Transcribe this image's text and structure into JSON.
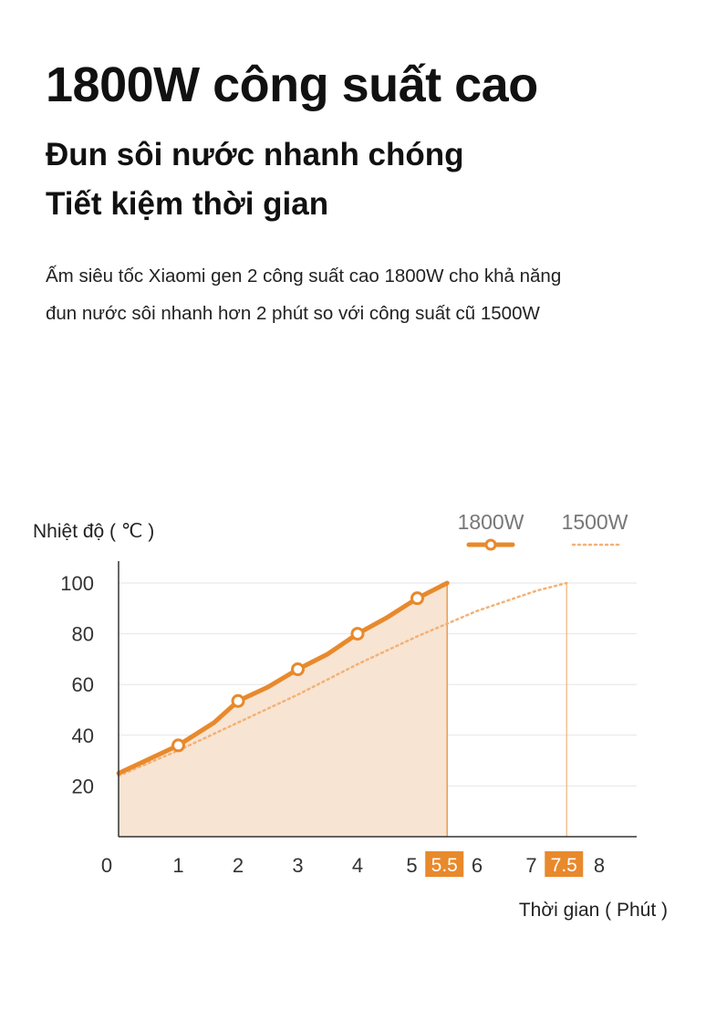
{
  "header": {
    "headline": "1800W công suất cao",
    "subheadline_1": "Đun sôi nước nhanh chóng",
    "subheadline_2": "Tiết kiệm thời gian",
    "body_line_1": "Ấm siêu tốc Xiaomi gen 2 công suất cao 1800W cho khả năng",
    "body_line_2": "đun nước sôi nhanh hơn 2 phút so với công suất cũ 1500W"
  },
  "colors": {
    "series_1800": "#E8892C",
    "series_1500": "#F2B277",
    "fill_area": "#F8E4D2",
    "highlight_box": "#E8892C",
    "axis": "#333333",
    "grid": "#e6e6e6"
  },
  "chart_data": {
    "type": "line",
    "ylabel": "Nhiệt độ ( ℃ )",
    "xlabel": "Thời gian ( Phút )",
    "xlim": [
      0,
      8
    ],
    "ylim": [
      0,
      100
    ],
    "y_ticks": [
      20,
      40,
      60,
      80,
      100
    ],
    "x_ticks": [
      0,
      1,
      2,
      3,
      4,
      5,
      6,
      7,
      8
    ],
    "highlight_ticks": [
      "5.5",
      "7.5"
    ],
    "legend_position": "top-right",
    "series": [
      {
        "name": "1800W",
        "style": "solid",
        "filled": true,
        "x": [
          0,
          0.5,
          1,
          1.6,
          2,
          2.5,
          3,
          3.5,
          4,
          4.5,
          5,
          5.5
        ],
        "y": [
          25,
          30.5,
          36,
          45,
          53.5,
          59,
          66,
          72,
          80,
          86.5,
          94,
          100
        ],
        "markers_x": [
          1,
          2,
          3,
          4,
          5
        ],
        "markers_y": [
          36,
          53.5,
          66,
          80,
          94
        ]
      },
      {
        "name": "1500W",
        "style": "dotted",
        "x": [
          0,
          1,
          2,
          3,
          4,
          5,
          5.5,
          6,
          6.5,
          7,
          7.5
        ],
        "y": [
          24,
          34,
          45,
          56,
          68,
          79,
          84,
          89,
          93,
          97,
          100
        ]
      }
    ],
    "end_markers": [
      {
        "x": 5.5,
        "series": "1800W"
      },
      {
        "x": 7.5,
        "series": "1500W"
      }
    ]
  }
}
